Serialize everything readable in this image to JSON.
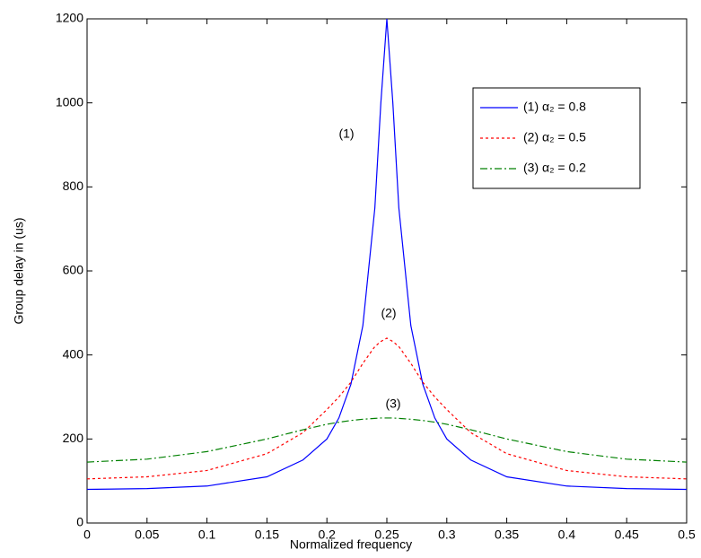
{
  "chart_data": {
    "type": "line",
    "xlabel": "Normalized frequency",
    "ylabel": "Group delay in (us)",
    "x": [
      0,
      0.05,
      0.1,
      0.15,
      0.18,
      0.2,
      0.21,
      0.22,
      0.23,
      0.24,
      0.245,
      0.25,
      0.255,
      0.26,
      0.27,
      0.28,
      0.29,
      0.3,
      0.32,
      0.35,
      0.4,
      0.45,
      0.5
    ],
    "series": [
      {
        "name": "(1) α₂ = 0.8",
        "color": "#0000ff",
        "dash": "solid",
        "values": [
          80,
          82,
          88,
          110,
          150,
          200,
          250,
          330,
          470,
          750,
          1000,
          1200,
          1000,
          750,
          470,
          330,
          250,
          200,
          150,
          110,
          88,
          82,
          80
        ]
      },
      {
        "name": "(2) α₂ = 0.5",
        "color": "#ff0000",
        "dash": "dotted",
        "values": [
          105,
          110,
          125,
          165,
          215,
          270,
          300,
          335,
          380,
          420,
          432,
          440,
          432,
          420,
          380,
          335,
          300,
          270,
          215,
          165,
          125,
          110,
          105
        ]
      },
      {
        "name": "(3) α₂ = 0.2",
        "color": "#008000",
        "dash": "dashdot",
        "values": [
          145,
          152,
          170,
          200,
          222,
          235,
          240,
          244,
          247,
          249,
          250,
          250,
          250,
          249,
          247,
          244,
          240,
          235,
          222,
          200,
          170,
          152,
          145
        ]
      }
    ],
    "annotations": [
      "(1)",
      "(2)",
      "(3)"
    ],
    "xlim": [
      0,
      0.5
    ],
    "xticks": [
      0,
      0.05,
      0.1,
      0.15,
      0.2,
      0.25,
      0.3,
      0.35,
      0.4,
      0.45,
      0.5
    ],
    "ylim": [
      0,
      1200
    ],
    "yticks": [
      0,
      200,
      400,
      600,
      800,
      1000,
      1200
    ],
    "grid": false,
    "legend": "upper right"
  }
}
